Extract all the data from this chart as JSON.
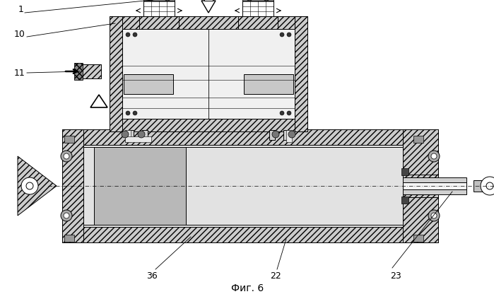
{
  "background_color": "#ffffff",
  "fig_caption": "Фиг. 6",
  "hatch_color": "#cccccc",
  "line_color": "black",
  "label_fontsize": 9
}
